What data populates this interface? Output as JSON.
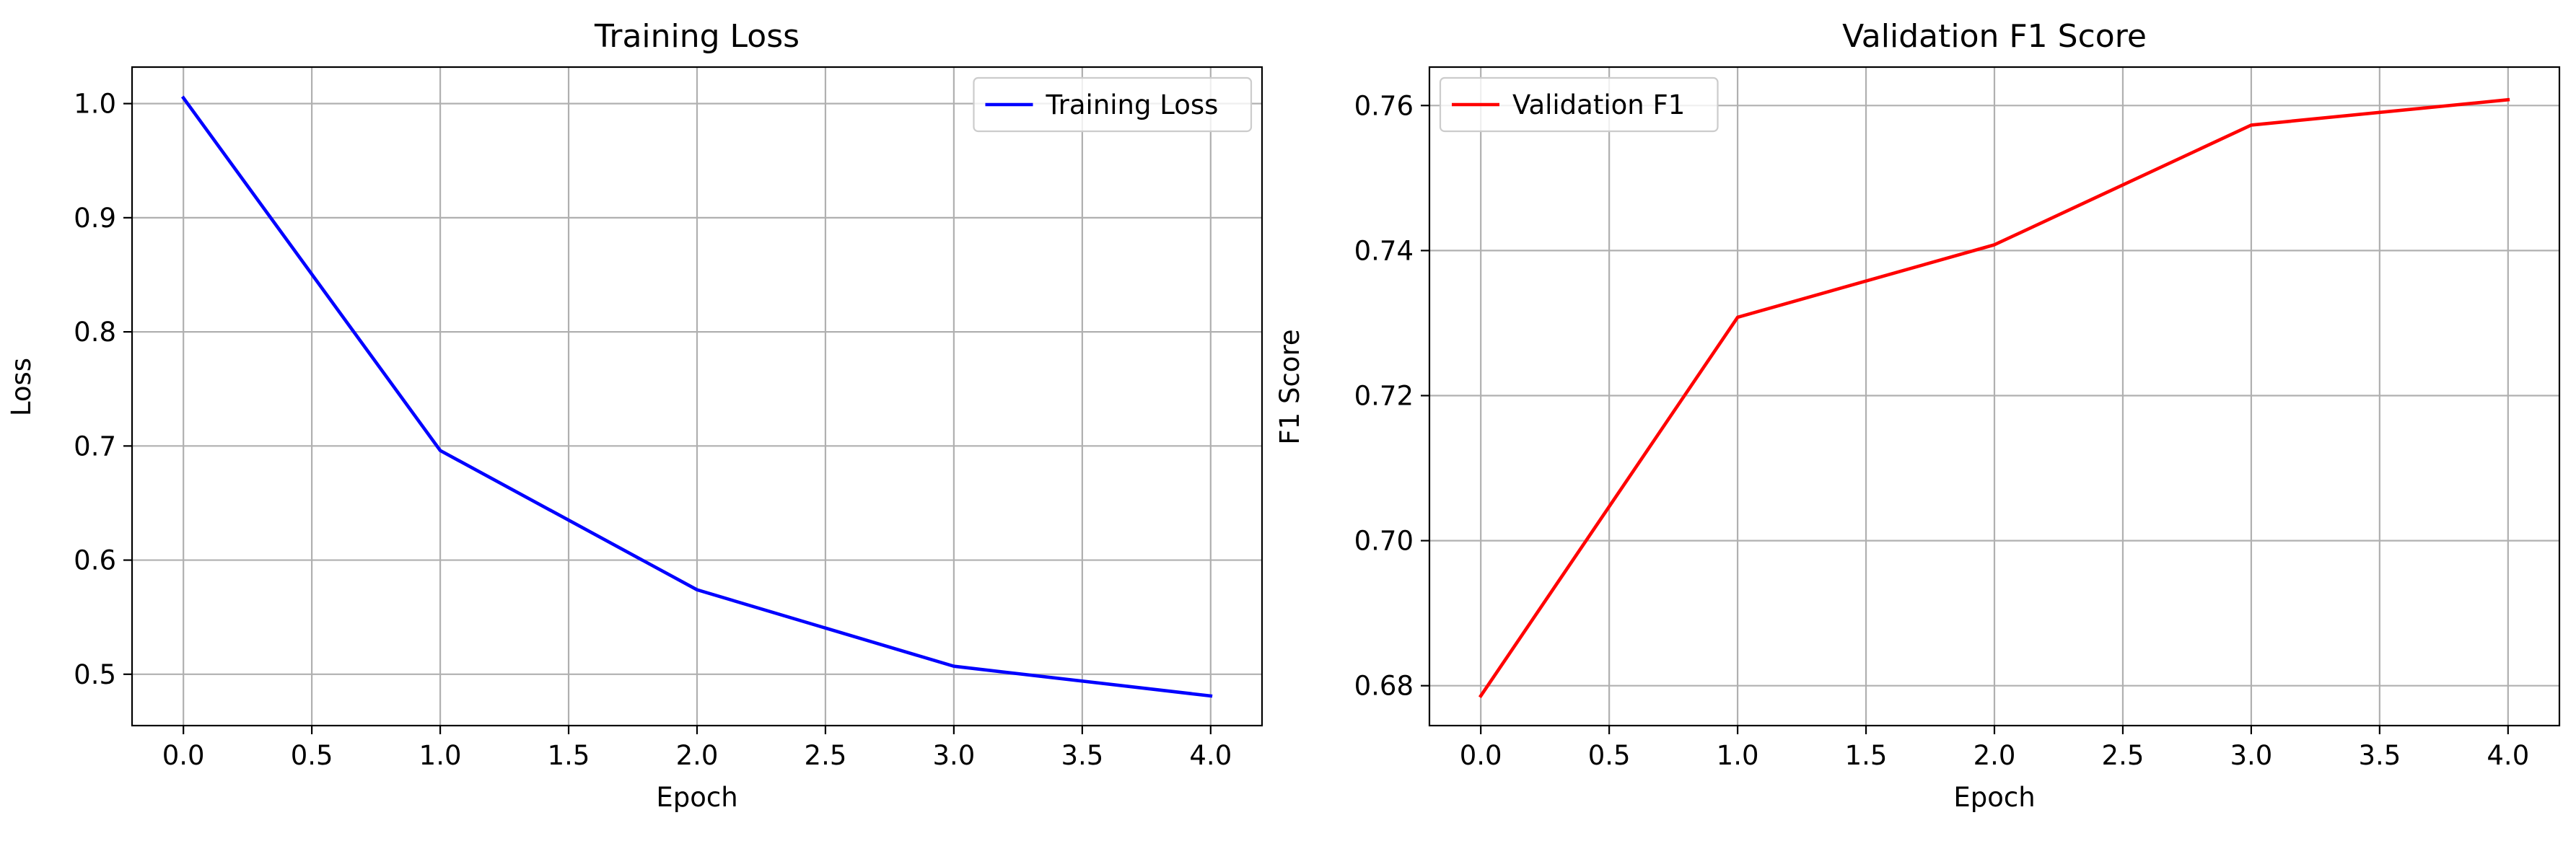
{
  "chart_data": [
    {
      "type": "line",
      "title": "Training Loss",
      "xlabel": "Epoch",
      "ylabel": "Loss",
      "xlim": [
        -0.2,
        4.2
      ],
      "ylim": [
        0.455,
        1.032
      ],
      "xticks": [
        0.0,
        0.5,
        1.0,
        1.5,
        2.0,
        2.5,
        3.0,
        3.5,
        4.0
      ],
      "xtick_labels": [
        "0.0",
        "0.5",
        "1.0",
        "1.5",
        "2.0",
        "2.5",
        "3.0",
        "3.5",
        "4.0"
      ],
      "yticks": [
        0.5,
        0.6,
        0.7,
        0.8,
        0.9,
        1.0
      ],
      "ytick_labels": [
        "0.5",
        "0.6",
        "0.7",
        "0.8",
        "0.9",
        "1.0"
      ],
      "grid": true,
      "legend": "upper-right",
      "series": [
        {
          "name": "Training Loss",
          "color": "#0000ff",
          "x": [
            0,
            1,
            2,
            3,
            4
          ],
          "y": [
            1.005,
            0.696,
            0.574,
            0.507,
            0.481
          ]
        }
      ]
    },
    {
      "type": "line",
      "title": "Validation F1 Score",
      "xlabel": "Epoch",
      "ylabel": "F1 Score",
      "xlim": [
        -0.2,
        4.2
      ],
      "ylim": [
        0.6745,
        0.7653
      ],
      "xticks": [
        0.0,
        0.5,
        1.0,
        1.5,
        2.0,
        2.5,
        3.0,
        3.5,
        4.0
      ],
      "xtick_labels": [
        "0.0",
        "0.5",
        "1.0",
        "1.5",
        "2.0",
        "2.5",
        "3.0",
        "3.5",
        "4.0"
      ],
      "yticks": [
        0.68,
        0.7,
        0.72,
        0.74,
        0.76
      ],
      "ytick_labels": [
        "0.68",
        "0.70",
        "0.72",
        "0.74",
        "0.76"
      ],
      "grid": true,
      "legend": "upper-left",
      "series": [
        {
          "name": "Validation F1",
          "color": "#ff0000",
          "x": [
            0,
            1,
            2,
            3,
            4
          ],
          "y": [
            0.6786,
            0.7308,
            0.7408,
            0.7573,
            0.7608
          ]
        }
      ]
    }
  ]
}
